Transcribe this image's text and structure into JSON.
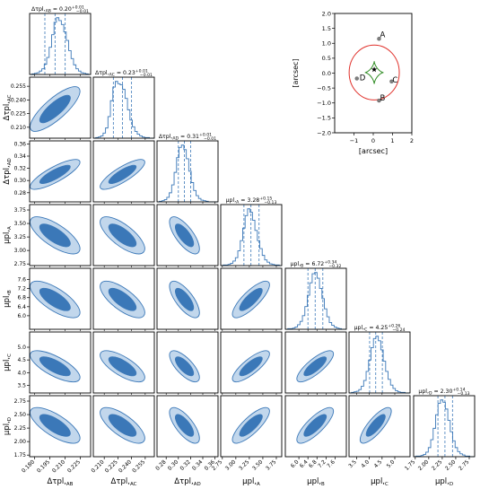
{
  "chart_data": [
    {
      "type": "corner",
      "title": "",
      "parameters": [
        {
          "id": "AB",
          "axis_label": "Δτpl, AB",
          "median": 0.2,
          "plus": 0.01,
          "minus": 0.01,
          "title_text": "Δτpl, AB = 0.20+0.01/−0.01",
          "range": [
            0.175,
            0.235
          ],
          "ticks": [
            0.18,
            0.195,
            0.21,
            0.225
          ],
          "tick_labels": [
            "0.180",
            "0.195",
            "0.210",
            "0.225"
          ],
          "hist": [
            0,
            1,
            2,
            3,
            6,
            10,
            18,
            30,
            48,
            70,
            92,
            100,
            95,
            88,
            75,
            60,
            42,
            28,
            17,
            10,
            6,
            3,
            2,
            1,
            0
          ]
        },
        {
          "id": "AC",
          "axis_label": "Δτpl, AC",
          "median": 0.23,
          "plus": 0.01,
          "minus": 0.01,
          "title_text": "Δτpl, AC = 0.23+0.01/−0.01",
          "range": [
            0.198,
            0.265
          ],
          "ticks": [
            0.21,
            0.225,
            0.24,
            0.255
          ],
          "tick_labels": [
            "0.210",
            "0.225",
            "0.240",
            "0.255"
          ],
          "hist": [
            0,
            1,
            2,
            4,
            9,
            18,
            38,
            66,
            90,
            100,
            96,
            94,
            86,
            70,
            50,
            32,
            20,
            12,
            7,
            4,
            2,
            1,
            1,
            0,
            0
          ]
        },
        {
          "id": "AD",
          "axis_label": "Δτpl, AD",
          "median": 0.31,
          "plus": 0.01,
          "minus": 0.01,
          "title_text": "Δτpl, AD = 0.31+0.01/−0.01",
          "range": [
            0.265,
            0.365
          ],
          "ticks": [
            0.28,
            0.3,
            0.32,
            0.34,
            0.36
          ],
          "tick_labels": [
            "0.28",
            "0.30",
            "0.32",
            "0.34",
            "0.36"
          ],
          "hist": [
            0,
            1,
            2,
            4,
            8,
            16,
            30,
            52,
            78,
            96,
            100,
            92,
            76,
            54,
            34,
            20,
            11,
            6,
            3,
            2,
            1,
            0,
            0,
            0,
            0
          ]
        },
        {
          "id": "A",
          "axis_label": "μpl, A",
          "median": 3.28,
          "plus": 0.15,
          "minus": 0.13,
          "title_text": "μpl, A = 3.28+0.15/−0.13",
          "range": [
            2.72,
            3.85
          ],
          "ticks": [
            2.75,
            3.0,
            3.25,
            3.5,
            3.75
          ],
          "tick_labels": [
            "2.75",
            "3.00",
            "3.25",
            "3.50",
            "3.75"
          ],
          "hist": [
            0,
            1,
            1,
            2,
            4,
            8,
            14,
            26,
            44,
            66,
            88,
            100,
            94,
            80,
            62,
            44,
            30,
            18,
            10,
            6,
            3,
            2,
            1,
            1,
            0
          ]
        },
        {
          "id": "B",
          "axis_label": "μpl, B",
          "median": 6.72,
          "plus": 0.34,
          "minus": 0.32,
          "title_text": "μpl, B = 6.72+0.34/−0.32",
          "range": [
            5.4,
            8.1
          ],
          "ticks": [
            6.0,
            6.4,
            6.8,
            7.2,
            7.6
          ],
          "tick_labels": [
            "6.0",
            "6.4",
            "6.8",
            "7.2",
            "7.6"
          ],
          "hist": [
            0,
            1,
            1,
            2,
            4,
            8,
            14,
            24,
            40,
            60,
            82,
            98,
            100,
            90,
            72,
            54,
            36,
            22,
            12,
            7,
            4,
            2,
            1,
            0,
            0
          ]
        },
        {
          "id": "C",
          "axis_label": "μpl, C",
          "median": 4.25,
          "plus": 0.26,
          "minus": 0.24,
          "title_text": "μpl, C = 4.25+0.26/−0.24",
          "range": [
            3.2,
            5.6
          ],
          "ticks": [
            3.5,
            4.0,
            4.5,
            5.0
          ],
          "tick_labels": [
            "3.5",
            "4.0",
            "4.5",
            "5.0"
          ],
          "hist": [
            0,
            1,
            2,
            3,
            6,
            12,
            22,
            38,
            58,
            80,
            96,
            100,
            92,
            76,
            56,
            38,
            24,
            14,
            8,
            4,
            2,
            1,
            1,
            0,
            0
          ]
        },
        {
          "id": "D",
          "axis_label": "μpl, D",
          "median": 2.3,
          "plus": 0.14,
          "minus": 0.13,
          "title_text": "μpl, D = 2.30+0.14/−0.13",
          "range": [
            1.72,
            2.85
          ],
          "ticks": [
            1.75,
            2.0,
            2.25,
            2.5,
            2.75
          ],
          "tick_labels": [
            "1.75",
            "2.00",
            "2.25",
            "2.50",
            "2.75"
          ],
          "hist": [
            0,
            1,
            1,
            2,
            4,
            8,
            16,
            30,
            50,
            74,
            94,
            100,
            96,
            84,
            64,
            44,
            28,
            16,
            9,
            5,
            3,
            1,
            1,
            0,
            0
          ]
        }
      ],
      "correlations": [
        [
          1,
          0.8,
          0.82,
          -0.72,
          -0.72,
          -0.72,
          -0.72
        ],
        [
          0.8,
          1,
          0.82,
          -0.72,
          -0.72,
          -0.72,
          -0.72
        ],
        [
          0.82,
          0.82,
          1,
          -0.72,
          -0.72,
          -0.72,
          -0.72
        ],
        [
          -0.72,
          -0.72,
          -0.72,
          1,
          0.8,
          0.8,
          0.8
        ],
        [
          -0.72,
          -0.72,
          -0.72,
          0.8,
          1,
          0.8,
          0.8
        ],
        [
          -0.72,
          -0.72,
          -0.72,
          0.8,
          0.8,
          1,
          0.8
        ],
        [
          -0.72,
          -0.72,
          -0.72,
          0.8,
          0.8,
          0.8,
          1
        ]
      ],
      "colors": {
        "contour_inner": "#3b78b8",
        "contour_outer": "#c2d7ec",
        "edge": "#3b78b8",
        "hist": "#3b78b8"
      }
    },
    {
      "type": "scatter",
      "xlabel": "[arcsec]",
      "ylabel": "[arcsec]",
      "xlim": [
        -2,
        2
      ],
      "ylim": [
        -2,
        2
      ],
      "xticks": [
        -1,
        0,
        1,
        2
      ],
      "yticks": [
        -2.0,
        -1.5,
        -1.0,
        -0.5,
        0.0,
        0.5,
        1.0,
        1.5,
        2.0
      ],
      "ytick_labels": [
        "−2.0",
        "−1.5",
        "−1.0",
        "−0.5",
        "0.0",
        "0.5",
        "1.0",
        "1.5",
        "2.0"
      ],
      "xtick_labels": [
        "−1",
        "0",
        "1",
        "2"
      ],
      "images": [
        {
          "label": "A",
          "x": 0.3,
          "y": 1.15
        },
        {
          "label": "B",
          "x": 0.3,
          "y": -0.92
        },
        {
          "label": "C",
          "x": 0.95,
          "y": -0.28
        },
        {
          "label": "D",
          "x": -0.85,
          "y": -0.18
        }
      ],
      "source": {
        "x": 0.05,
        "y": 0.12
      },
      "caustic": {
        "type": "astroid",
        "cx": 0.05,
        "cy": 0.02,
        "a": 0.48,
        "b": 0.38
      },
      "critical_curve": {
        "type": "ellipse",
        "cx": 0.05,
        "cy": 0.02,
        "rx": 1.3,
        "ry": 0.92
      },
      "colors": {
        "critical": "#e0302a",
        "caustic": "#2e8b22",
        "points": "#7f7f7f"
      }
    }
  ]
}
